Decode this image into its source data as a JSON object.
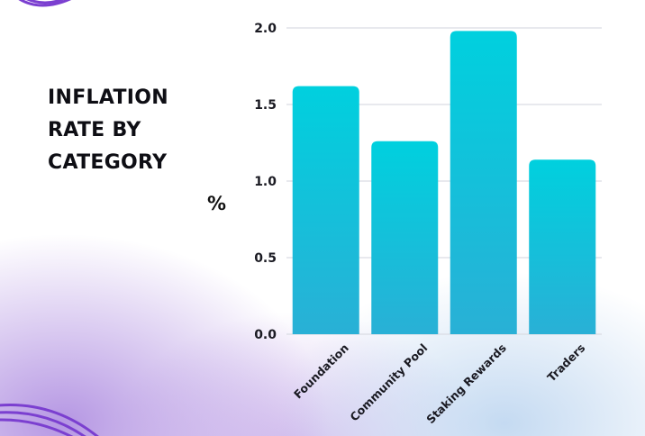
{
  "chart_data": {
    "type": "bar",
    "title": "INFLATION RATE BY CATEGORY",
    "title_lines": [
      "INFLATION",
      "RATE BY",
      "CATEGORY"
    ],
    "ylabel": "%",
    "xlabel": "",
    "categories": [
      "Foundation",
      "Community Pool",
      "Staking Rewards",
      "Traders"
    ],
    "values": [
      1.62,
      1.26,
      1.98,
      1.14
    ],
    "ylim": [
      0,
      2.0
    ],
    "yticks": [
      "0.0",
      "0.5",
      "1.0",
      "1.5",
      "2.0"
    ],
    "grid": true,
    "legend": "none",
    "bar_color_top": "#00d0de",
    "bar_color_bottom": "#29b0d6"
  }
}
